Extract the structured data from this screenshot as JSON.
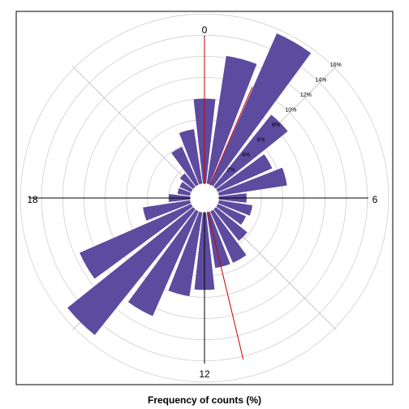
{
  "chart_data": {
    "type": "polar-bar",
    "title": "",
    "xlabel": "Frequency of counts (%)",
    "direction_labels": [
      "0",
      "6",
      "12",
      "18"
    ],
    "radial_ticks": [
      2,
      4,
      6,
      8,
      10,
      12,
      14,
      16
    ],
    "radial_tick_labels": [
      "2%",
      "4%",
      "6%",
      "8%",
      "10%",
      "12%",
      "14%",
      "16%"
    ],
    "rmax": 16,
    "bar_color": "#5C4B9E",
    "hours": [
      0,
      1,
      2,
      3,
      4,
      5,
      6,
      7,
      8,
      9,
      10,
      11,
      12,
      13,
      14,
      15,
      16,
      17,
      18,
      19,
      20,
      21,
      22,
      23
    ],
    "values": [
      8.0,
      12.2,
      15.6,
      8.7,
      5.6,
      6.5,
      2.6,
      3.2,
      2.9,
      3.8,
      5.3,
      5.3,
      7.3,
      8.0,
      10.8,
      15.2,
      11.5,
      4.5,
      2.0,
      1.2,
      1.2,
      1.6,
      3.9,
      5.2
    ],
    "mean_direction_lines": [
      {
        "angle_hours": 1.55,
        "length_pct": 10
      },
      {
        "angle_hours": 11.1,
        "length_pct": 14.3
      }
    ],
    "mean_line_color": "#CC0000"
  }
}
